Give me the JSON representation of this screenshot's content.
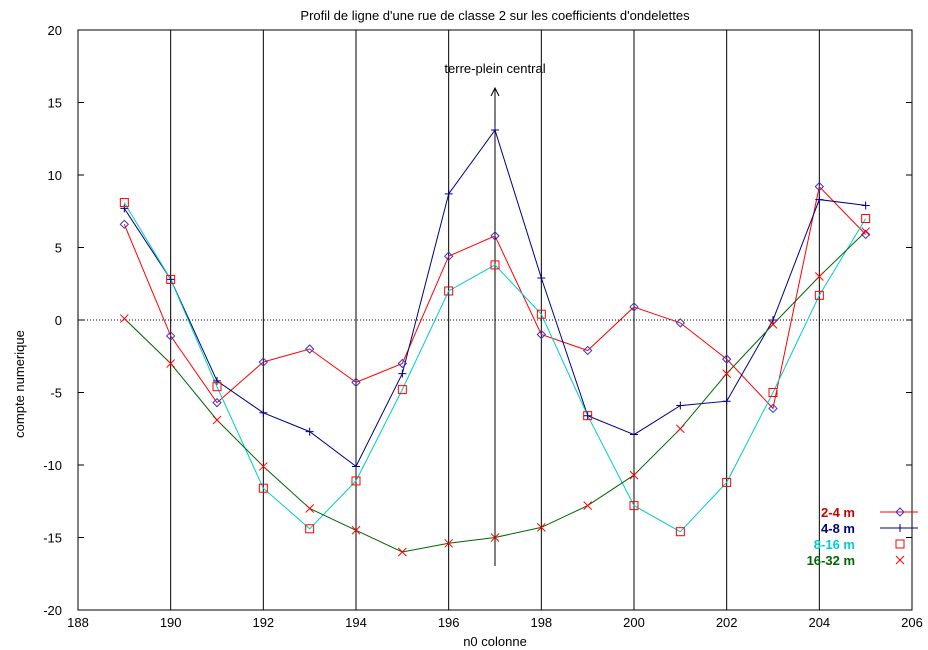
{
  "chart_data": {
    "type": "line",
    "title": "Profil de ligne d'une rue de classe 2 sur les coefficients d'ondelettes",
    "xlabel": "n0 colonne",
    "ylabel": "compte numerique",
    "xlim": [
      188,
      206
    ],
    "ylim": [
      -20,
      20
    ],
    "xticks": [
      188,
      190,
      192,
      194,
      196,
      198,
      200,
      202,
      204,
      206
    ],
    "yticks": [
      -20,
      -15,
      -10,
      -5,
      0,
      5,
      10,
      15,
      20
    ],
    "grid": "vertical lines at x ticks, dotted line at y=0",
    "legend_position": "bottom-right",
    "annotation": {
      "text": "terre-plein central",
      "x": 197
    },
    "series": [
      {
        "name": "2-4 m",
        "color": "#ff0000",
        "text_color": "#cc0000",
        "marker": "diamond",
        "marker_color": "#3333cc",
        "x": [
          189,
          190,
          191,
          192,
          193,
          194,
          195,
          196,
          197,
          198,
          199,
          200,
          201,
          202,
          203,
          204,
          205
        ],
        "y": [
          6.6,
          -1.1,
          -5.7,
          -2.9,
          -2.0,
          -4.3,
          -3.0,
          4.4,
          5.8,
          -1.0,
          -2.1,
          0.9,
          -0.2,
          -2.7,
          -6.1,
          9.2,
          5.9
        ]
      },
      {
        "name": "4-8 m",
        "color": "#000080",
        "text_color": "#000080",
        "marker": "plus",
        "marker_color": "#000080",
        "x": [
          189,
          190,
          191,
          192,
          193,
          194,
          195,
          196,
          197,
          198,
          199,
          200,
          201,
          202,
          203,
          204,
          205
        ],
        "y": [
          7.7,
          2.8,
          -4.2,
          -6.4,
          -7.7,
          -10.1,
          -3.7,
          8.7,
          13.1,
          2.9,
          -6.6,
          -7.9,
          -5.9,
          -5.6,
          0.0,
          8.3,
          7.9
        ]
      },
      {
        "name": "8-16 m",
        "color": "#00cccc",
        "text_color": "#00cccc",
        "marker": "square",
        "marker_color": "#ff0000",
        "x": [
          189,
          190,
          191,
          192,
          193,
          194,
          195,
          196,
          197,
          198,
          199,
          200,
          201,
          202,
          203,
          204,
          205
        ],
        "y": [
          8.1,
          2.8,
          -4.6,
          -11.6,
          -14.4,
          -11.1,
          -4.8,
          2.0,
          3.8,
          0.4,
          -6.6,
          -12.8,
          -14.6,
          -11.2,
          -5.0,
          1.7,
          7.0
        ]
      },
      {
        "name": "16-32 m",
        "color": "#006600",
        "text_color": "#006600",
        "marker": "x",
        "marker_color": "#ff0000",
        "x": [
          189,
          190,
          191,
          192,
          193,
          194,
          195,
          196,
          197,
          198,
          199,
          200,
          201,
          202,
          203,
          204,
          205
        ],
        "y": [
          0.1,
          -3.0,
          -6.9,
          -10.1,
          -13.0,
          -14.5,
          -16.0,
          -15.4,
          -15.0,
          -14.3,
          -12.8,
          -10.7,
          -7.5,
          -3.7,
          -0.3,
          3.0,
          6.1
        ]
      }
    ]
  }
}
